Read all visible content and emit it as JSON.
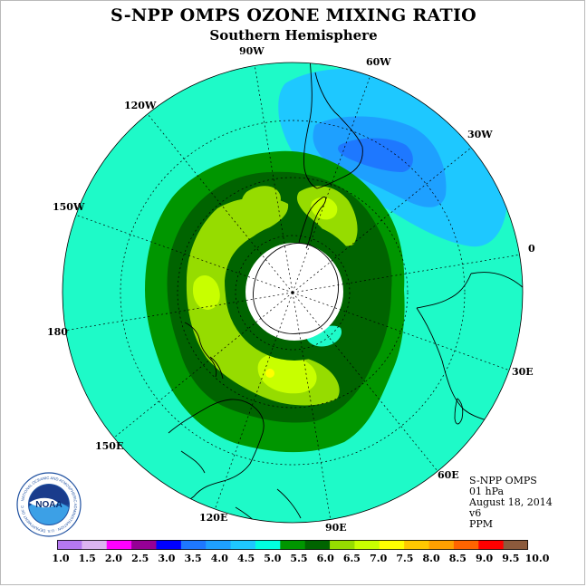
{
  "title": "S-NPP OMPS OZONE MIXING RATIO",
  "subtitle": "Southern Hemisphere",
  "longitude_labels": [
    "90W",
    "60W",
    "30W",
    "0",
    "30E",
    "60E",
    "90E",
    "120E",
    "150E",
    "180",
    "150W",
    "120W"
  ],
  "info": {
    "instrument": "S-NPP OMPS",
    "pressure_level": "01 hPa",
    "date": "August 18, 2014",
    "version": "v6",
    "units": "PPM"
  },
  "logo": {
    "text": "NOAA",
    "ring_text": "NATIONAL OCEANIC AND ATMOSPHERIC ADMINISTRATION · U.S. DEPARTMENT OF COMMERCE"
  },
  "colorbar": {
    "labels": [
      "1.0",
      "1.5",
      "2.0",
      "2.5",
      "3.0",
      "3.5",
      "4.0",
      "4.5",
      "5.0",
      "5.5",
      "6.0",
      "6.5",
      "7.0",
      "7.5",
      "8.0",
      "8.5",
      "9.0",
      "9.5",
      "10.0"
    ],
    "colors": [
      "#b478f0",
      "#dcb4f0",
      "#ff00ff",
      "#960096",
      "#0000ff",
      "#1e78ff",
      "#1ea0ff",
      "#1ec8ff",
      "#00ffe1",
      "#009600",
      "#006400",
      "#96dc00",
      "#c8ff00",
      "#ffff00",
      "#ffc800",
      "#ffa000",
      "#ff6400",
      "#ff0000",
      "#8c5a3c"
    ]
  },
  "field_levels_ppm": {
    "background": "5.0",
    "ring_outer": "5.5",
    "ring_inner": "6.0",
    "maxima": [
      "6.5",
      "7.0",
      "7.5"
    ],
    "trough": [
      "4.0",
      "4.5"
    ]
  }
}
